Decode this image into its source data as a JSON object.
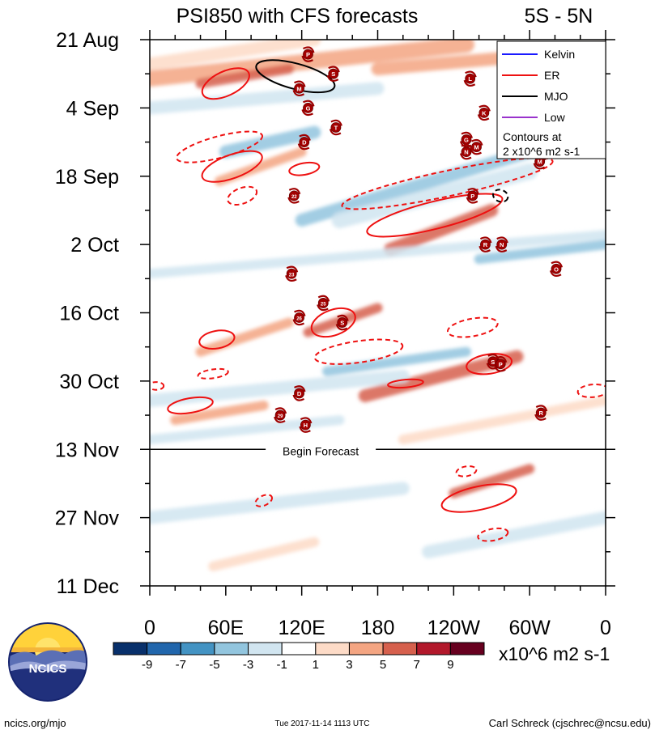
{
  "chart_data": {
    "type": "heatmap",
    "title": "PSI850 with CFS forecasts",
    "region": "5S - 5N",
    "y_axis": {
      "labels": [
        "21 Aug",
        "4 Sep",
        "18 Sep",
        "2 Oct",
        "16 Oct",
        "30 Oct",
        "13 Nov",
        "27 Nov",
        "11 Dec"
      ],
      "start_day": 0,
      "end_day": 112,
      "label_step_days": 14,
      "minor_step_days": 7
    },
    "x_axis": {
      "labels": [
        "0",
        "60E",
        "120E",
        "180",
        "120W",
        "60W",
        "0"
      ],
      "range": [
        0,
        360
      ]
    },
    "forecast_start": {
      "label": "Begin Forecast",
      "day": 84
    },
    "legend": {
      "entries": [
        {
          "name": "Kelvin",
          "color": "#1a1aff"
        },
        {
          "name": "ER",
          "color": "#ee1111"
        },
        {
          "name": "MJO",
          "color": "#000000"
        },
        {
          "name": "Low",
          "color": "#9933cc"
        }
      ],
      "contour_note_1": "Contours at",
      "contour_note_2": "2 x10^6 m2 s-1"
    },
    "colorbar": {
      "labels": [
        "-9",
        "-7",
        "-5",
        "-3",
        "-1",
        "1",
        "3",
        "5",
        "7",
        "9"
      ],
      "units": "x10^6 m2 s-1",
      "colors": [
        "#08306b",
        "#2166ac",
        "#4393c3",
        "#92c5de",
        "#d1e5f0",
        "#ffffff",
        "#fddbc7",
        "#f4a582",
        "#d6604d",
        "#b2182b",
        "#67001f"
      ]
    },
    "anomaly_bands": [
      {
        "lon": 0,
        "day": 5,
        "lon2": 130,
        "day2": 0,
        "sign": 1,
        "level": 1,
        "w": 4
      },
      {
        "lon": 0,
        "day": 8,
        "lon2": 250,
        "day2": 1,
        "sign": 1,
        "level": 2,
        "w": 5
      },
      {
        "lon": 40,
        "day": 9,
        "lon2": 110,
        "day2": 6,
        "sign": 1,
        "level": 3,
        "w": 3
      },
      {
        "lon": 180,
        "day": 6,
        "lon2": 360,
        "day2": 2,
        "sign": 1,
        "level": 2,
        "w": 4
      },
      {
        "lon": 0,
        "day": 14,
        "lon2": 180,
        "day2": 10,
        "sign": -1,
        "level": 1,
        "w": 4
      },
      {
        "lon": 60,
        "day": 23,
        "lon2": 130,
        "day2": 19,
        "sign": -1,
        "level": 2,
        "w": 4
      },
      {
        "lon": 55,
        "day": 29,
        "lon2": 120,
        "day2": 23,
        "sign": 1,
        "level": 2,
        "w": 3
      },
      {
        "lon": 120,
        "day": 37,
        "lon2": 300,
        "day2": 23,
        "sign": -1,
        "level": 2,
        "w": 4
      },
      {
        "lon": 150,
        "day": 37,
        "lon2": 300,
        "day2": 27,
        "sign": -1,
        "level": 1,
        "w": 5
      },
      {
        "lon": 190,
        "day": 43,
        "lon2": 270,
        "day2": 35,
        "sign": 1,
        "level": 3,
        "w": 4
      },
      {
        "lon": 260,
        "day": 45,
        "lon2": 360,
        "day2": 42,
        "sign": -1,
        "level": 2,
        "w": 3
      },
      {
        "lon": 0,
        "day": 48,
        "lon2": 360,
        "day2": 40,
        "sign": -1,
        "level": 1,
        "w": 3
      },
      {
        "lon": 125,
        "day": 60,
        "lon2": 180,
        "day2": 55,
        "sign": 1,
        "level": 3,
        "w": 3
      },
      {
        "lon": 40,
        "day": 64,
        "lon2": 110,
        "day2": 58,
        "sign": 1,
        "level": 2,
        "w": 3
      },
      {
        "lon": 140,
        "day": 68,
        "lon2": 250,
        "day2": 64,
        "sign": -1,
        "level": 2,
        "w": 3
      },
      {
        "lon": 170,
        "day": 73,
        "lon2": 290,
        "day2": 65,
        "sign": 1,
        "level": 3,
        "w": 4
      },
      {
        "lon": 0,
        "day": 74,
        "lon2": 200,
        "day2": 69,
        "sign": -1,
        "level": 1,
        "w": 4
      },
      {
        "lon": 20,
        "day": 78,
        "lon2": 90,
        "day2": 75,
        "sign": 1,
        "level": 2,
        "w": 3
      },
      {
        "lon": 200,
        "day": 82,
        "lon2": 360,
        "day2": 74,
        "sign": 1,
        "level": 1,
        "w": 3
      },
      {
        "lon": 0,
        "day": 82,
        "lon2": 150,
        "day2": 78,
        "sign": -1,
        "level": 1,
        "w": 3
      },
      {
        "lon": 240,
        "day": 93,
        "lon2": 300,
        "day2": 88,
        "sign": 1,
        "level": 3,
        "w": 3
      },
      {
        "lon": 0,
        "day": 98,
        "lon2": 200,
        "day2": 92,
        "sign": -1,
        "level": 1,
        "w": 4
      },
      {
        "lon": 220,
        "day": 105,
        "lon2": 360,
        "day2": 98,
        "sign": -1,
        "level": 1,
        "w": 4
      },
      {
        "lon": 50,
        "day": 108,
        "lon2": 130,
        "day2": 103,
        "sign": 1,
        "level": 1,
        "w": 3
      }
    ],
    "contours": [
      {
        "type": "ER",
        "dashed": false,
        "lon": 60,
        "day": 9,
        "rx": 20,
        "ry": 2.5,
        "rot": -25
      },
      {
        "type": "MJO",
        "dashed": false,
        "lon": 115,
        "day": 7.5,
        "rx": 32,
        "ry": 2.6,
        "rot": 15
      },
      {
        "type": "ER",
        "dashed": true,
        "lon": 55,
        "day": 22,
        "rx": 35,
        "ry": 2.2,
        "rot": -15
      },
      {
        "type": "ER",
        "dashed": false,
        "lon": 65,
        "day": 26,
        "rx": 25,
        "ry": 2.4,
        "rot": -20
      },
      {
        "type": "ER",
        "dashed": false,
        "lon": 122,
        "day": 26.5,
        "rx": 12,
        "ry": 1.2,
        "rot": -10
      },
      {
        "type": "ER",
        "dashed": true,
        "lon": 73,
        "day": 32,
        "rx": 12,
        "ry": 1.6,
        "rot": -20
      },
      {
        "type": "ER",
        "dashed": true,
        "lon": 235,
        "day": 29.5,
        "rx": 85,
        "ry": 2.6,
        "rot": -12
      },
      {
        "type": "ER",
        "dashed": false,
        "lon": 225,
        "day": 36,
        "rx": 55,
        "ry": 2.8,
        "rot": -14
      },
      {
        "type": "MJO",
        "dashed": true,
        "lon": 277,
        "day": 32,
        "rx": 6,
        "ry": 1.2,
        "rot": 20
      },
      {
        "type": "ER",
        "dashed": false,
        "lon": 145,
        "day": 58,
        "rx": 18,
        "ry": 2.6,
        "rot": -20
      },
      {
        "type": "ER",
        "dashed": false,
        "lon": 53,
        "day": 61.5,
        "rx": 14,
        "ry": 1.8,
        "rot": -10
      },
      {
        "type": "ER",
        "dashed": true,
        "lon": 165,
        "day": 64,
        "rx": 35,
        "ry": 2.2,
        "rot": -8
      },
      {
        "type": "ER",
        "dashed": true,
        "lon": 255,
        "day": 59,
        "rx": 20,
        "ry": 1.8,
        "rot": -10
      },
      {
        "type": "ER",
        "dashed": false,
        "lon": 202,
        "day": 70.5,
        "rx": 14,
        "ry": 0.8,
        "rot": -5
      },
      {
        "type": "ER",
        "dashed": true,
        "lon": 50,
        "day": 68.5,
        "rx": 12,
        "ry": 0.9,
        "rot": -8
      },
      {
        "type": "ER",
        "dashed": true,
        "lon": 5,
        "day": 71,
        "rx": 6,
        "ry": 0.8,
        "rot": 0
      },
      {
        "type": "ER",
        "dashed": false,
        "lon": 268,
        "day": 66.5,
        "rx": 18,
        "ry": 2.0,
        "rot": -8
      },
      {
        "type": "ER",
        "dashed": false,
        "lon": 32,
        "day": 75,
        "rx": 18,
        "ry": 1.5,
        "rot": -10
      },
      {
        "type": "ER",
        "dashed": true,
        "lon": 350,
        "day": 72,
        "rx": 12,
        "ry": 1.3,
        "rot": -5
      },
      {
        "type": "ER",
        "dashed": true,
        "lon": 250,
        "day": 88.5,
        "rx": 8,
        "ry": 1.0,
        "rot": -10
      },
      {
        "type": "ER",
        "dashed": false,
        "lon": 260,
        "day": 94,
        "rx": 30,
        "ry": 2.4,
        "rot": -12
      },
      {
        "type": "ER",
        "dashed": true,
        "lon": 90,
        "day": 94.5,
        "rx": 7,
        "ry": 1.0,
        "rot": -25
      },
      {
        "type": "ER",
        "dashed": true,
        "lon": 271,
        "day": 101.5,
        "rx": 12,
        "ry": 1.2,
        "rot": -10
      }
    ],
    "storms": [
      {
        "label": "P",
        "lon": 125,
        "day": 3
      },
      {
        "label": "S",
        "lon": 145,
        "day": 7
      },
      {
        "label": "M",
        "lon": 118,
        "day": 10
      },
      {
        "label": "L",
        "lon": 253,
        "day": 8
      },
      {
        "label": "G",
        "lon": 125,
        "day": 14
      },
      {
        "label": "K",
        "lon": 264,
        "day": 15
      },
      {
        "label": "T",
        "lon": 147,
        "day": 18
      },
      {
        "label": "D",
        "lon": 122,
        "day": 21
      },
      {
        "label": "G",
        "lon": 250,
        "day": 20.5
      },
      {
        "label": "M",
        "lon": 258,
        "day": 22
      },
      {
        "label": "N",
        "lon": 250,
        "day": 23
      },
      {
        "label": "M",
        "lon": 308,
        "day": 25
      },
      {
        "label": "22",
        "lon": 114,
        "day": 32
      },
      {
        "label": "P",
        "lon": 255,
        "day": 32
      },
      {
        "label": "R",
        "lon": 265,
        "day": 42
      },
      {
        "label": "N",
        "lon": 278,
        "day": 42
      },
      {
        "label": "O",
        "lon": 321,
        "day": 47
      },
      {
        "label": "23",
        "lon": 112,
        "day": 48
      },
      {
        "label": "25",
        "lon": 137,
        "day": 54
      },
      {
        "label": "26",
        "lon": 118,
        "day": 57
      },
      {
        "label": "S",
        "lon": 152,
        "day": 58
      },
      {
        "label": "S",
        "lon": 271,
        "day": 66
      },
      {
        "label": "P",
        "lon": 277,
        "day": 66.5
      },
      {
        "label": "D",
        "lon": 118,
        "day": 72.5
      },
      {
        "label": "29",
        "lon": 103,
        "day": 77
      },
      {
        "label": "H",
        "lon": 123,
        "day": 79
      },
      {
        "label": "R",
        "lon": 309,
        "day": 76.5
      }
    ]
  },
  "footer": {
    "left": "ncics.org/mjo",
    "center": "Tue 2017-11-14 1113 UTC",
    "right": "Carl Schreck (cjschrec@ncsu.edu)",
    "logo_text": "NCICS"
  }
}
